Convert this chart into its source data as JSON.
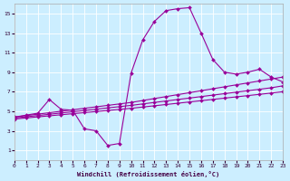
{
  "xlabel": "Windchill (Refroidissement éolien,°C)",
  "xlim": [
    0,
    23
  ],
  "ylim": [
    0,
    16
  ],
  "xticks": [
    0,
    1,
    2,
    3,
    4,
    5,
    6,
    7,
    8,
    9,
    10,
    11,
    12,
    13,
    14,
    15,
    16,
    17,
    18,
    19,
    20,
    21,
    22,
    23
  ],
  "yticks": [
    1,
    3,
    5,
    7,
    9,
    11,
    13,
    15
  ],
  "bg_color": "#cceeff",
  "line_color": "#990099",
  "curve_x": [
    0,
    1,
    2,
    3,
    4,
    5,
    6,
    7,
    8,
    9,
    10,
    11,
    12,
    13,
    14,
    15,
    16,
    17,
    18,
    19,
    20,
    21,
    22,
    23
  ],
  "curve_y": [
    4.4,
    4.6,
    4.8,
    6.2,
    5.2,
    5.1,
    3.2,
    3.0,
    1.5,
    1.7,
    8.9,
    12.3,
    14.2,
    15.3,
    15.5,
    15.6,
    13.0,
    10.3,
    9.0,
    8.8,
    9.0,
    9.3,
    8.5,
    8.0
  ],
  "lin1_x": [
    0,
    1,
    2,
    3,
    4,
    5,
    6,
    7,
    8,
    9,
    10,
    11,
    12,
    13,
    14,
    15,
    16,
    17,
    18,
    19,
    20,
    21,
    22,
    23
  ],
  "lin1_y": [
    4.4,
    4.55,
    4.7,
    4.85,
    5.0,
    5.15,
    5.3,
    5.45,
    5.6,
    5.75,
    5.9,
    6.1,
    6.3,
    6.5,
    6.7,
    6.9,
    7.1,
    7.3,
    7.5,
    7.7,
    7.9,
    8.1,
    8.3,
    8.5
  ],
  "lin2_x": [
    0,
    1,
    2,
    3,
    4,
    5,
    6,
    7,
    8,
    9,
    10,
    11,
    12,
    13,
    14,
    15,
    16,
    17,
    18,
    19,
    20,
    21,
    22,
    23
  ],
  "lin2_y": [
    4.3,
    4.43,
    4.56,
    4.69,
    4.82,
    4.95,
    5.08,
    5.21,
    5.34,
    5.47,
    5.6,
    5.75,
    5.9,
    6.05,
    6.2,
    6.35,
    6.5,
    6.65,
    6.8,
    6.95,
    7.1,
    7.25,
    7.4,
    7.6
  ],
  "lin3_x": [
    0,
    1,
    2,
    3,
    4,
    5,
    6,
    7,
    8,
    9,
    10,
    11,
    12,
    13,
    14,
    15,
    16,
    17,
    18,
    19,
    20,
    21,
    22,
    23
  ],
  "lin3_y": [
    4.2,
    4.31,
    4.42,
    4.53,
    4.64,
    4.75,
    4.86,
    4.97,
    5.08,
    5.19,
    5.3,
    5.43,
    5.56,
    5.69,
    5.82,
    5.95,
    6.08,
    6.21,
    6.34,
    6.47,
    6.6,
    6.73,
    6.86,
    7.0
  ]
}
